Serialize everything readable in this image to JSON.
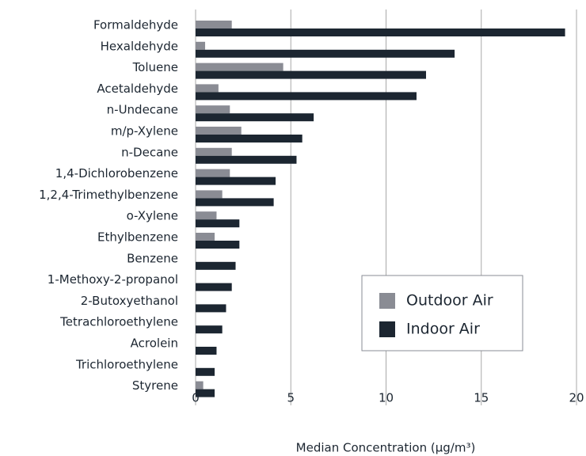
{
  "chart_data": {
    "type": "barh",
    "categories": [
      "Formaldehyde",
      "Hexaldehyde",
      "Toluene",
      "Acetaldehyde",
      "n-Undecane",
      "m/p-Xylene",
      "n-Decane",
      "1,4-Dichlorobenzene",
      "1,2,4-Trimethylbenzene",
      "o-Xylene",
      "Ethylbenzene",
      "Benzene",
      "1-Methoxy-2-propanol",
      "2-Butoxyethanol",
      "Tetrachloroethylene",
      "Acrolein",
      "Trichloroethylene",
      "Styrene"
    ],
    "series": [
      {
        "name": "Outdoor Air",
        "color": "#8a8c94",
        "values": [
          1.9,
          0.5,
          4.6,
          1.2,
          1.8,
          2.4,
          1.9,
          1.8,
          1.4,
          1.1,
          1.0,
          null,
          null,
          null,
          null,
          null,
          null,
          0.4
        ]
      },
      {
        "name": "Indoor Air",
        "color": "#1c2631",
        "values": [
          19.4,
          13.6,
          12.1,
          11.6,
          6.2,
          5.6,
          5.3,
          4.2,
          4.1,
          2.3,
          2.3,
          2.1,
          1.9,
          1.6,
          1.4,
          1.1,
          1.0,
          1.0
        ]
      }
    ],
    "xlabel": "Median Concentration (µg/m³)",
    "xlim": [
      0,
      20
    ],
    "xticks": [
      0,
      5,
      10,
      15,
      20
    ],
    "grid": true,
    "legend": "lower right"
  }
}
